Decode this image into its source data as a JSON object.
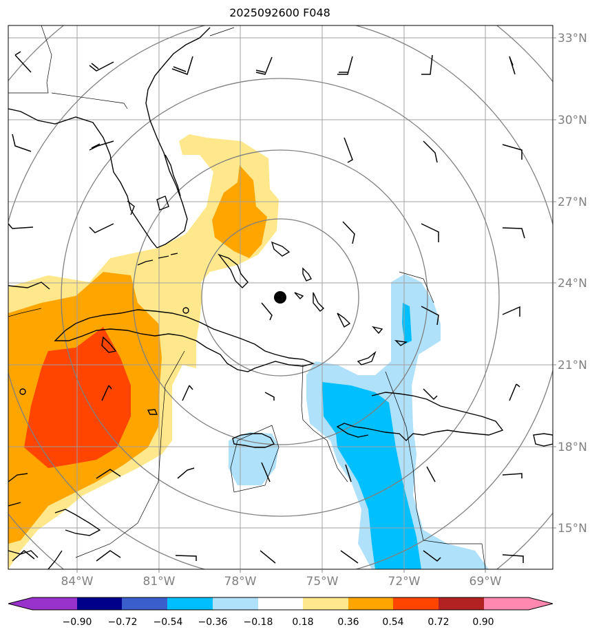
{
  "title": "2025092600 F048",
  "map": {
    "lat_labels": [
      "33°N",
      "30°N",
      "27°N",
      "24°N",
      "21°N",
      "18°N",
      "15°N"
    ],
    "lon_labels": [
      "84°W",
      "81°W",
      "78°W",
      "75°W",
      "72°W",
      "69°W"
    ],
    "storm_center": {
      "lat": 23.5,
      "lon": -76.3
    },
    "range_rings": 5,
    "grid_color": "#a0a0a0",
    "tick_label_color": "#808080"
  },
  "colorbar": {
    "labels": [
      "−0.90",
      "−0.72",
      "−0.54",
      "−0.36",
      "−0.18",
      "0.18",
      "0.36",
      "0.54",
      "0.72",
      "0.90"
    ],
    "colors": [
      "#9932cc",
      "#00008b",
      "#3a5fcd",
      "#00bfff",
      "#afe1fa",
      "#ffffff",
      "#ffe88c",
      "#ffa500",
      "#ff4500",
      "#b22222",
      "#ff88b0"
    ]
  },
  "chart_data": {
    "type": "heatmap",
    "title": "2025092600 F048",
    "xlabel": "",
    "ylabel": "",
    "xlim": [
      -87,
      -67
    ],
    "ylim": [
      13.5,
      33.5
    ],
    "x_ticks": [
      -84,
      -81,
      -78,
      -75,
      -72,
      -69
    ],
    "y_ticks": [
      15,
      18,
      21,
      24,
      27,
      30,
      33
    ],
    "contour_levels": [
      -0.9,
      -0.72,
      -0.54,
      -0.36,
      -0.18,
      0.18,
      0.36,
      0.54,
      0.72,
      0.9
    ],
    "regions": [
      {
        "level": "0.18 to 0.36",
        "color": "#ffe88c",
        "area": "western Caribbean, Cuba, Florida Straits, north toward Florida east coast"
      },
      {
        "level": "0.36 to 0.54",
        "color": "#ffa500",
        "area": "western Caribbean / Cuba and near northwest Bahamas"
      },
      {
        "level": "0.54 to 0.72",
        "color": "#ff4500",
        "area": "western Caribbean south of Cuba"
      },
      {
        "level": "-0.36 to -0.18",
        "color": "#afe1fa",
        "area": "Jamaica, Haiti, Turks and Caicos"
      },
      {
        "level": "-0.54 to -0.36",
        "color": "#00bfff",
        "area": "Windward Passage / Hispaniola"
      }
    ]
  }
}
